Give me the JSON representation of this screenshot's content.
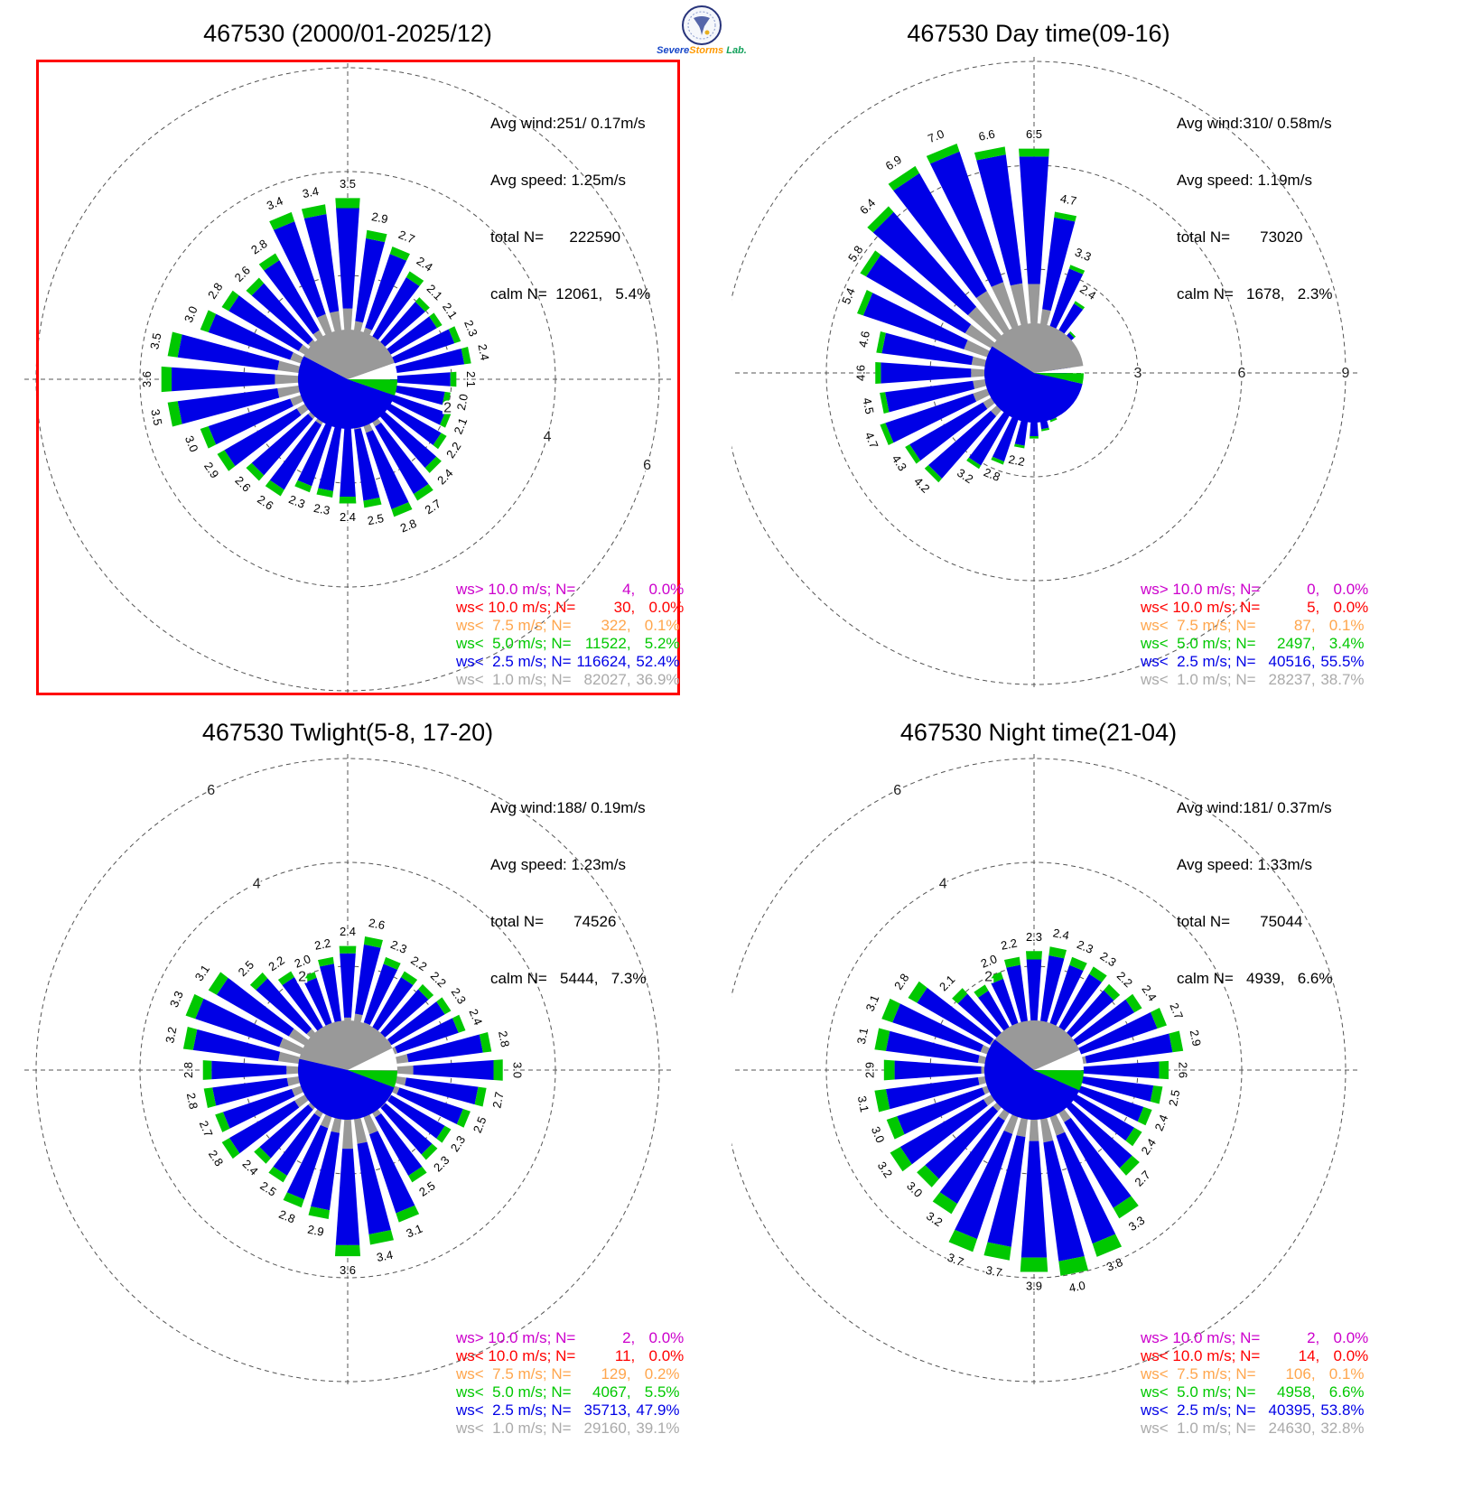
{
  "colors": {
    "blue": "#0000e6",
    "gray": "#999999",
    "lgray": "#aaaaaa",
    "green": "#00c800",
    "orange": "#ffa64d",
    "red": "#ff0000",
    "purple": "#cc00cc",
    "grid": "#555555",
    "highlight": "#ff0000",
    "text": "#000000"
  },
  "legend_colors": [
    "purple",
    "red",
    "orange",
    "green",
    "blue",
    "lgray"
  ],
  "logo": {
    "title": "Severe Storms Lab.",
    "parts": [
      "Severe",
      "Storms",
      "Lab."
    ]
  },
  "chart_data": [
    {
      "type": "windrose-bar",
      "title": "467530 (2000/01-2025/12)",
      "n_sectors": 32,
      "start_direction": "N",
      "clockwise": true,
      "ring_ticks": [
        2,
        4,
        6
      ],
      "tick_label_bearing_deg": 106,
      "label_min": 2.0,
      "values": [
        3.5,
        2.9,
        2.7,
        2.4,
        2.1,
        2.1,
        2.3,
        2.4,
        2.1,
        2.0,
        2.1,
        2.2,
        2.4,
        2.7,
        2.8,
        2.5,
        2.4,
        2.3,
        2.3,
        2.6,
        2.6,
        2.9,
        3.0,
        3.5,
        3.6,
        3.5,
        3.0,
        2.8,
        2.6,
        2.8,
        3.4,
        3.4
      ],
      "stack_pcts": {
        "calm": 5.4,
        "lt1": 36.9,
        "lt2_5": 52.4,
        "lt5": 5.2,
        "lt7_5": 0.1,
        "lt10": 0.0,
        "gt10": 0.0
      }
    },
    {
      "type": "windrose-bar",
      "title": "467530 Day time(09-16)",
      "n_sectors": 32,
      "start_direction": "N",
      "clockwise": true,
      "ring_ticks": [
        3,
        6,
        9
      ],
      "tick_label_bearing_deg": 90,
      "label_min": 2.0,
      "values": [
        6.5,
        4.7,
        3.3,
        2.4,
        1.6,
        1.3,
        1.2,
        1.1,
        1.0,
        1.0,
        1.1,
        1.2,
        1.3,
        1.4,
        1.5,
        1.7,
        1.9,
        2.2,
        2.8,
        3.2,
        4.2,
        4.3,
        4.7,
        4.5,
        4.6,
        4.6,
        5.4,
        5.8,
        6.4,
        6.9,
        7.0,
        6.6
      ],
      "stack_pcts": {
        "calm": 2.3,
        "lt1": 38.7,
        "lt2_5": 55.5,
        "lt5": 3.4,
        "lt7_5": 0.1,
        "lt10": 0.0,
        "gt10": 0.0
      }
    },
    {
      "type": "windrose-bar",
      "title": "467530 Twlight(5-8, 17-20)",
      "n_sectors": 32,
      "start_direction": "N",
      "clockwise": true,
      "ring_ticks": [
        2,
        4,
        6
      ],
      "tick_label_bearing_deg": 334,
      "label_min": 2.0,
      "values": [
        2.4,
        2.6,
        2.3,
        2.2,
        2.2,
        2.3,
        2.4,
        2.8,
        3.0,
        2.7,
        2.5,
        2.3,
        2.3,
        2.5,
        3.1,
        3.4,
        3.6,
        2.9,
        2.8,
        2.5,
        2.4,
        2.8,
        2.7,
        2.8,
        2.8,
        3.2,
        3.3,
        3.1,
        2.5,
        2.2,
        2.0,
        2.2
      ],
      "stack_pcts": {
        "calm": 7.3,
        "lt1": 39.1,
        "lt2_5": 47.9,
        "lt5": 5.5,
        "lt7_5": 0.2,
        "lt10": 0.0,
        "gt10": 0.0
      }
    },
    {
      "type": "windrose-bar",
      "title": "467530 Night time(21-04)",
      "n_sectors": 32,
      "start_direction": "N",
      "clockwise": true,
      "ring_ticks": [
        2,
        4,
        6
      ],
      "tick_label_bearing_deg": 334,
      "label_min": 2.0,
      "values": [
        2.3,
        2.4,
        2.3,
        2.3,
        2.2,
        2.4,
        2.7,
        2.9,
        2.6,
        2.5,
        2.4,
        2.4,
        2.7,
        3.3,
        3.8,
        4.0,
        3.9,
        3.7,
        3.7,
        3.2,
        3.0,
        3.2,
        3.0,
        3.1,
        2.9,
        3.1,
        3.1,
        2.8,
        2.1,
        1.9,
        2.0,
        2.2
      ],
      "stack_pcts": {
        "calm": 6.6,
        "lt1": 32.8,
        "lt2_5": 53.8,
        "lt5": 6.6,
        "lt7_5": 0.1,
        "lt10": 0.0,
        "gt10": 0.0
      }
    }
  ],
  "panels": [
    {
      "highlighted": true,
      "stats": {
        "avg_wind": "Avg wind:251/ 0.17m/s",
        "avg_speed": "Avg speed: 1.25m/s",
        "total_n": "total N=      222590",
        "calm_n": "calm N=  12061,   5.4%"
      },
      "legend": [
        {
          "label": "ws> 10.0 m/s; N=",
          "n": "4,",
          "pct": "0.0%"
        },
        {
          "label": "ws< 10.0 m/s; N=",
          "n": "30,",
          "pct": "0.0%"
        },
        {
          "label": "ws<  7.5 m/s; N=",
          "n": "322,",
          "pct": "0.1%"
        },
        {
          "label": "ws<  5.0 m/s; N=",
          "n": "11522,",
          "pct": "5.2%"
        },
        {
          "label": "ws<  2.5 m/s; N=",
          "n": "116624,",
          "pct": "52.4%"
        },
        {
          "label": "ws<  1.0 m/s; N=",
          "n": "82027,",
          "pct": "36.9%"
        }
      ]
    },
    {
      "highlighted": false,
      "stats": {
        "avg_wind": "Avg wind:310/ 0.58m/s",
        "avg_speed": "Avg speed: 1.19m/s",
        "total_n": "total N=       73020",
        "calm_n": "calm N=   1678,   2.3%"
      },
      "legend": [
        {
          "label": "ws> 10.0 m/s; N=",
          "n": "0,",
          "pct": "0.0%"
        },
        {
          "label": "ws< 10.0 m/s; N=",
          "n": "5,",
          "pct": "0.0%"
        },
        {
          "label": "ws<  7.5 m/s; N=",
          "n": "87,",
          "pct": "0.1%"
        },
        {
          "label": "ws<  5.0 m/s; N=",
          "n": "2497,",
          "pct": "3.4%"
        },
        {
          "label": "ws<  2.5 m/s; N=",
          "n": "40516,",
          "pct": "55.5%"
        },
        {
          "label": "ws<  1.0 m/s; N=",
          "n": "28237,",
          "pct": "38.7%"
        }
      ]
    },
    {
      "highlighted": false,
      "stats": {
        "avg_wind": "Avg wind:188/ 0.19m/s",
        "avg_speed": "Avg speed: 1.23m/s",
        "total_n": "total N=       74526",
        "calm_n": "calm N=   5444,   7.3%"
      },
      "legend": [
        {
          "label": "ws> 10.0 m/s; N=",
          "n": "2,",
          "pct": "0.0%"
        },
        {
          "label": "ws< 10.0 m/s; N=",
          "n": "11,",
          "pct": "0.0%"
        },
        {
          "label": "ws<  7.5 m/s; N=",
          "n": "129,",
          "pct": "0.2%"
        },
        {
          "label": "ws<  5.0 m/s; N=",
          "n": "4067,",
          "pct": "5.5%"
        },
        {
          "label": "ws<  2.5 m/s; N=",
          "n": "35713,",
          "pct": "47.9%"
        },
        {
          "label": "ws<  1.0 m/s; N=",
          "n": "29160,",
          "pct": "39.1%"
        }
      ]
    },
    {
      "highlighted": false,
      "stats": {
        "avg_wind": "Avg wind:181/ 0.37m/s",
        "avg_speed": "Avg speed: 1.33m/s",
        "total_n": "total N=       75044",
        "calm_n": "calm N=   4939,   6.6%"
      },
      "legend": [
        {
          "label": "ws> 10.0 m/s; N=",
          "n": "2,",
          "pct": "0.0%"
        },
        {
          "label": "ws< 10.0 m/s; N=",
          "n": "14,",
          "pct": "0.0%"
        },
        {
          "label": "ws<  7.5 m/s; N=",
          "n": "106,",
          "pct": "0.1%"
        },
        {
          "label": "ws<  5.0 m/s; N=",
          "n": "4958,",
          "pct": "6.6%"
        },
        {
          "label": "ws<  2.5 m/s; N=",
          "n": "40395,",
          "pct": "53.8%"
        },
        {
          "label": "ws<  1.0 m/s; N=",
          "n": "24630,",
          "pct": "32.8%"
        }
      ]
    }
  ]
}
